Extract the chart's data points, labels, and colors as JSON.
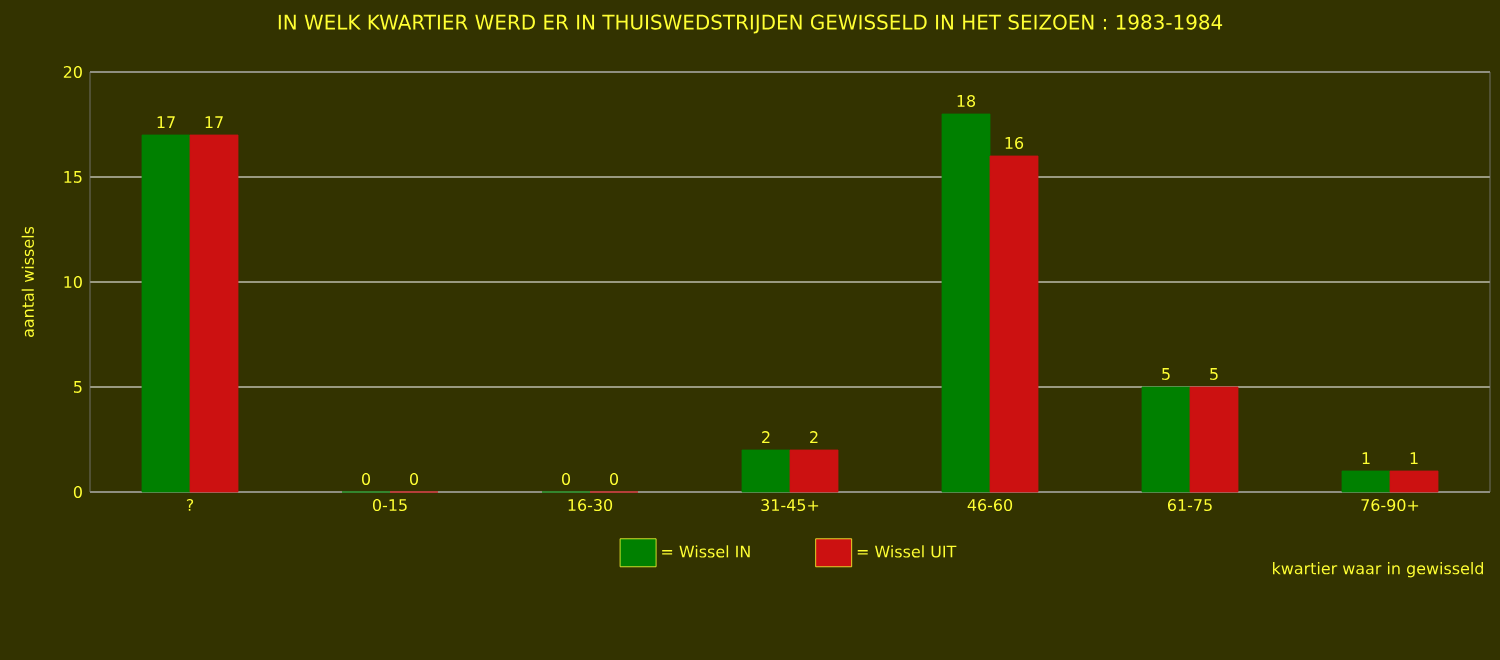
{
  "chart_data": {
    "type": "bar",
    "title": "IN WELK KWARTIER WERD ER IN THUISWEDSTRIJDEN GEWISSELD IN HET SEIZOEN : 1983-1984",
    "xlabel": "kwartier waar in gewisseld",
    "ylabel": "aantal wissels",
    "categories": [
      "?",
      "0-15",
      "16-30",
      "31-45+",
      "46-60",
      "61-75",
      "76-90+"
    ],
    "series": [
      {
        "name": "= Wissel IN",
        "color": "#008000",
        "values": [
          17,
          0,
          0,
          2,
          18,
          5,
          1
        ]
      },
      {
        "name": "= Wissel UIT",
        "color": "#cc1111",
        "values": [
          17,
          0,
          0,
          2,
          16,
          5,
          1
        ]
      }
    ],
    "ylim": [
      0,
      20
    ],
    "yticks": [
      0,
      5,
      10,
      15,
      20
    ],
    "grid": "y",
    "legend": "bottom",
    "data_labels": true
  }
}
